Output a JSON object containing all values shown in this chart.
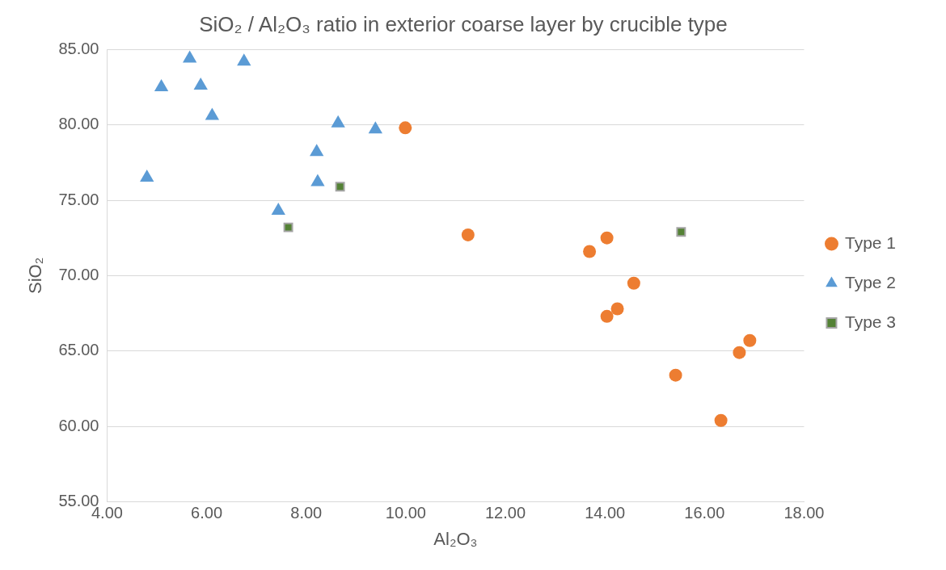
{
  "chart_data": {
    "type": "scatter",
    "title": "SiO₂ / Al₂O₃ ratio in exterior coarse layer by crucible type",
    "xlabel": "Al₂O₃",
    "ylabel": "SiO₂",
    "series": [
      {
        "name": "Type 1",
        "color": "#ed7d31",
        "marker": "circle",
        "x": [
          9.99,
          11.25,
          13.69,
          14.04,
          14.58,
          14.25,
          14.04,
          16.91,
          16.7,
          15.42,
          16.33
        ],
        "values": [
          79.8,
          72.7,
          71.6,
          72.5,
          69.5,
          67.8,
          67.3,
          65.7,
          64.9,
          63.4,
          60.4
        ]
      },
      {
        "name": "Type 2",
        "color": "#5b9bd5",
        "marker": "triangle",
        "x": [
          4.8,
          5.09,
          5.66,
          5.88,
          6.11,
          6.75,
          8.64,
          9.39,
          8.21,
          8.23,
          7.44
        ],
        "values": [
          76.5,
          82.5,
          84.4,
          82.6,
          80.6,
          84.2,
          80.1,
          79.7,
          78.2,
          76.2,
          74.3
        ]
      },
      {
        "name": "Type 3",
        "color": "#548235",
        "marker": "square",
        "x": [
          7.64,
          8.68,
          15.53
        ],
        "values": [
          73.2,
          75.9,
          72.9
        ]
      }
    ],
    "xlim": [
      4,
      18
    ],
    "xticks": [
      {
        "value": 4,
        "label": "4.00"
      },
      {
        "value": 6,
        "label": "6.00"
      },
      {
        "value": 8,
        "label": "8.00"
      },
      {
        "value": 10,
        "label": "10.00"
      },
      {
        "value": 12,
        "label": "12.00"
      },
      {
        "value": 14,
        "label": "14.00"
      },
      {
        "value": 16,
        "label": "16.00"
      },
      {
        "value": 18,
        "label": "18.00"
      }
    ],
    "ylim": [
      55,
      85
    ],
    "yticks": [
      {
        "value": 55,
        "label": "55.00"
      },
      {
        "value": 60,
        "label": "60.00"
      },
      {
        "value": 65,
        "label": "65.00"
      },
      {
        "value": 70,
        "label": "70.00"
      },
      {
        "value": 75,
        "label": "75.00"
      },
      {
        "value": 80,
        "label": "80.00"
      },
      {
        "value": 85,
        "label": "85.00"
      }
    ],
    "grid": "y",
    "legend": "right"
  }
}
